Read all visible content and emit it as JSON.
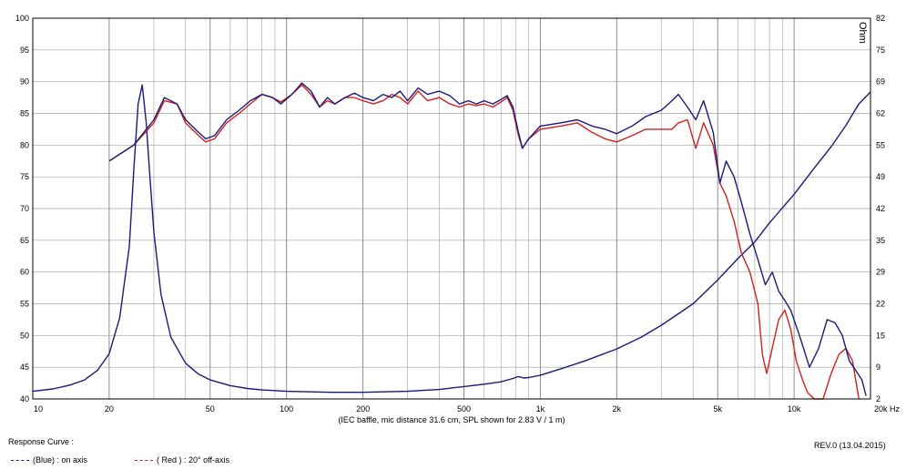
{
  "chart_data": {
    "type": "line",
    "x_scale": "log",
    "xlim": [
      10,
      20000
    ],
    "ylim": [
      40,
      100
    ],
    "y2lim": [
      2,
      82
    ],
    "grid": true,
    "x_ticks": [
      {
        "v": 10,
        "label": "10"
      },
      {
        "v": 20,
        "label": "20"
      },
      {
        "v": 50,
        "label": "50"
      },
      {
        "v": 100,
        "label": "100"
      },
      {
        "v": 200,
        "label": "200"
      },
      {
        "v": 500,
        "label": "500"
      },
      {
        "v": 1000,
        "label": "1k"
      },
      {
        "v": 2000,
        "label": "2k"
      },
      {
        "v": 5000,
        "label": "5k"
      },
      {
        "v": 10000,
        "label": "10k"
      },
      {
        "v": 20000,
        "label": "20k Hz"
      }
    ],
    "y_ticks": [
      "100",
      "95",
      "90",
      "85",
      "80",
      "75",
      "70",
      "65",
      "60",
      "55",
      "50",
      "45",
      "40"
    ],
    "y2_ticks": [
      "82",
      "75",
      "69",
      "62",
      "55",
      "49",
      "42",
      "35",
      "29",
      "22",
      "15",
      "9",
      "2"
    ],
    "y2_unit": "Ohm",
    "caption": "(IEC baffle, mic distance 31.6 cm, SPL shown for 2.83 V / 1 m)",
    "colors": {
      "blue": "#1a1a7a",
      "red": "#d42020",
      "grid": "#a0a0a0"
    },
    "series": [
      {
        "name": "(Blue) : on axis",
        "color": "#1a1a7a",
        "x": [
          20,
          25,
          30,
          33,
          37,
          40,
          45,
          48,
          52,
          58,
          65,
          72,
          80,
          88,
          95,
          105,
          115,
          125,
          135,
          145,
          155,
          170,
          185,
          200,
          220,
          240,
          260,
          280,
          300,
          330,
          360,
          400,
          440,
          480,
          520,
          560,
          600,
          650,
          700,
          740,
          780,
          820,
          850,
          900,
          1000,
          1200,
          1400,
          1600,
          1800,
          2000,
          2300,
          2600,
          3000,
          3300,
          3500,
          3800,
          4100,
          4400,
          4800,
          5100,
          5400,
          5800,
          6200,
          6700,
          7200,
          7700,
          8200,
          8700,
          9200,
          9700,
          10500,
          11500,
          12500,
          13500,
          14500,
          15500,
          16500,
          17500,
          18500,
          19200
        ],
        "y": [
          77.5,
          80.0,
          84.0,
          87.5,
          86.5,
          84.0,
          82.0,
          81.0,
          81.5,
          84.0,
          85.5,
          87.0,
          88.0,
          87.5,
          86.5,
          88.0,
          89.8,
          88.5,
          86.0,
          87.5,
          86.5,
          87.5,
          88.2,
          87.5,
          87.0,
          88.0,
          87.5,
          88.5,
          87.0,
          89.0,
          88.0,
          88.5,
          87.8,
          86.5,
          87.0,
          86.5,
          87.0,
          86.5,
          87.2,
          87.8,
          86.0,
          82.0,
          79.5,
          81.0,
          83.0,
          83.5,
          84.0,
          83.0,
          82.5,
          81.8,
          83.0,
          84.5,
          85.5,
          87.0,
          88.0,
          86.0,
          84.0,
          87.0,
          82.0,
          74.0,
          77.5,
          75.0,
          71.0,
          66.0,
          62.0,
          58.0,
          60.0,
          57.0,
          55.5,
          54.0,
          50.0,
          45.0,
          48.0,
          52.5,
          52.0,
          50.0,
          46.0,
          44.5,
          43.0,
          40.5
        ]
      },
      {
        "name": "( Red ) : 20° off-axis",
        "color": "#d42020",
        "x": [
          20,
          25,
          30,
          33,
          37,
          40,
          45,
          48,
          52,
          58,
          65,
          72,
          80,
          88,
          95,
          105,
          115,
          125,
          135,
          145,
          155,
          170,
          185,
          200,
          220,
          240,
          260,
          280,
          300,
          330,
          360,
          400,
          440,
          480,
          520,
          560,
          600,
          650,
          700,
          740,
          780,
          820,
          850,
          900,
          1000,
          1200,
          1400,
          1600,
          1800,
          2000,
          2300,
          2600,
          3000,
          3300,
          3500,
          3800,
          4100,
          4400,
          4800,
          5100,
          5400,
          5800,
          6200,
          6700,
          7200,
          7500,
          7800,
          8200,
          8700,
          9200,
          9700,
          10200,
          10800,
          11300,
          12000,
          13000,
          14000,
          15000,
          16000,
          17000,
          18000
        ],
        "y": [
          77.5,
          80.0,
          83.5,
          87.0,
          86.5,
          83.5,
          81.5,
          80.5,
          81.0,
          83.5,
          85.0,
          86.5,
          88.0,
          87.5,
          86.8,
          88.0,
          89.5,
          88.0,
          86.0,
          87.0,
          86.5,
          87.5,
          87.5,
          87.0,
          86.5,
          87.0,
          88.0,
          87.5,
          86.5,
          88.5,
          87.0,
          87.5,
          86.5,
          86.0,
          86.5,
          86.2,
          86.5,
          86.0,
          86.8,
          87.5,
          85.5,
          81.5,
          79.5,
          81.0,
          82.5,
          83.0,
          83.5,
          82.0,
          81.0,
          80.5,
          81.5,
          82.5,
          82.5,
          82.5,
          83.5,
          84.0,
          79.5,
          83.5,
          80.0,
          74.0,
          72.0,
          68.0,
          63.0,
          60.0,
          55.0,
          47.0,
          44.0,
          48.0,
          52.5,
          54.0,
          51.0,
          46.0,
          43.0,
          41.0,
          40.0,
          40.0,
          44.0,
          47.0,
          48.0,
          46.0,
          40.0
        ]
      },
      {
        "name": "Impedance",
        "color": "#1a1a7a",
        "axis": "right",
        "x": [
          10,
          12,
          14,
          16,
          18,
          20,
          22,
          24,
          25,
          26,
          27,
          28,
          29,
          30,
          32,
          35,
          40,
          45,
          50,
          60,
          70,
          80,
          100,
          150,
          200,
          300,
          400,
          500,
          600,
          700,
          780,
          820,
          860,
          900,
          1000,
          1200,
          1500,
          2000,
          2500,
          3000,
          4000,
          5000,
          6000,
          7000,
          8000,
          10000,
          12000,
          14000,
          16000,
          18000,
          20000
        ],
        "y": [
          3.6,
          4.1,
          4.9,
          6.0,
          8.0,
          11.5,
          19.0,
          34.0,
          50.0,
          64.0,
          68.0,
          60.0,
          48.0,
          37.0,
          24.0,
          15.0,
          9.5,
          7.2,
          6.0,
          4.8,
          4.2,
          3.9,
          3.6,
          3.4,
          3.4,
          3.6,
          4.0,
          4.6,
          5.1,
          5.6,
          6.3,
          6.7,
          6.4,
          6.5,
          7.0,
          8.3,
          10.0,
          12.5,
          15.0,
          17.5,
          22.0,
          27.0,
          31.5,
          35.0,
          39.0,
          45.0,
          50.5,
          55.0,
          59.5,
          64.0,
          66.5
        ]
      }
    ]
  },
  "footer": {
    "response_curve_label": "Response Curve :",
    "rev_label": "REV.0 (13.04.2015)",
    "legend_blue": "(Blue) : on axis",
    "legend_red": "( Red ) : 20° off-axis"
  }
}
